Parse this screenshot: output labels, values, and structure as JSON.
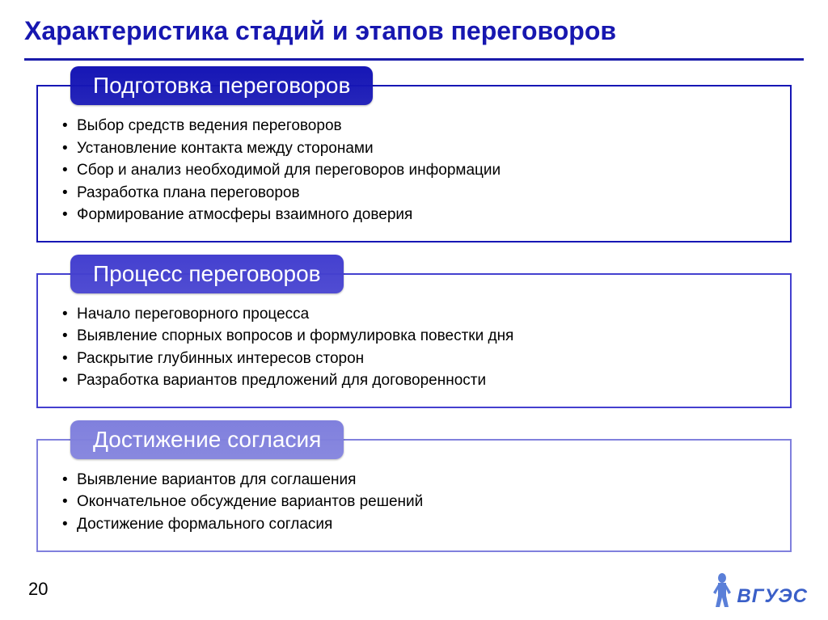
{
  "title": {
    "text": "Характеристика стадий и этапов переговоров",
    "color": "#1717b0"
  },
  "hr_color": "#1a1caa",
  "stages": [
    {
      "header": "Подготовка переговоров",
      "header_bg": "#1616b5",
      "border_color": "#1616b5",
      "items": [
        "Выбор средств ведения переговоров",
        "Установление контакта между сторонами",
        "Сбор и анализ необходимой для переговоров информации",
        "Разработка плана переговоров",
        "Формирование атмосферы взаимного доверия"
      ]
    },
    {
      "header": "Процесс переговоров",
      "header_bg": "#4440cf",
      "border_color": "#4440cf",
      "items": [
        "Начало переговорного процесса",
        "Выявление спорных вопросов и формулировка повестки дня",
        "Раскрытие глубинных интересов сторон",
        "Разработка вариантов предложений для договоренности"
      ]
    },
    {
      "header": "Достижение согласия",
      "header_bg": "#8080dd",
      "border_color": "#8080dd",
      "items": [
        "Выявление вариантов для соглашения",
        "Окончательное обсуждение вариантов решений",
        "Достижение формального согласия"
      ]
    }
  ],
  "page_number": "20",
  "logo": {
    "text": "ВГУЭС",
    "text_color": "#3a5fc8",
    "figure_color": "#5a7fd8"
  }
}
